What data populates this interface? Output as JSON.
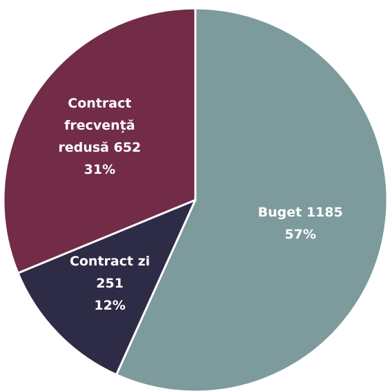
{
  "chart_data": {
    "type": "pie",
    "title": "",
    "start_angle_deg": 0,
    "direction": "clockwise",
    "slices": [
      {
        "category": "Buget",
        "value": 1185,
        "percent": "57%",
        "label_lines": [
          "Buget 1185",
          "57%"
        ],
        "color": "#7d9a9c"
      },
      {
        "category": "Contract zi",
        "value": 251,
        "percent": "12%",
        "label_lines": [
          "Contract zi",
          "251",
          "12%"
        ],
        "color": "#2d2b45"
      },
      {
        "category": "Contract frecvență redusă",
        "value": 652,
        "percent": "31%",
        "label_lines": [
          "Contract",
          "frecvență",
          "redusă 652",
          "31%"
        ],
        "color": "#722c47"
      }
    ],
    "legend": "none"
  }
}
